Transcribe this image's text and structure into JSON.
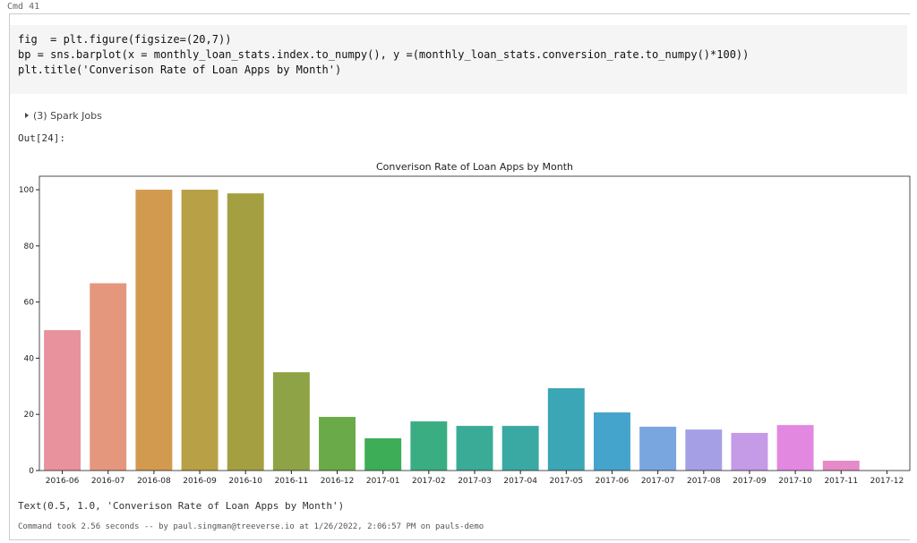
{
  "cell_label": "Cmd 41",
  "code_lines": [
    "fig  = plt.figure(figsize=(20,7))",
    "bp = sns.barplot(x = monthly_loan_stats.index.to_numpy(), y =(monthly_loan_stats.conversion_rate.to_numpy()*100))",
    "plt.title('Converison Rate of Loan Apps by Month')"
  ],
  "spark_jobs": "(3) Spark Jobs",
  "out_label": "Out[24]:",
  "chart_data": {
    "type": "bar",
    "title": "Converison Rate of Loan Apps by Month",
    "categories": [
      "2016-06",
      "2016-07",
      "2016-08",
      "2016-09",
      "2016-10",
      "2016-11",
      "2016-12",
      "2017-01",
      "2017-02",
      "2017-03",
      "2017-04",
      "2017-05",
      "2017-06",
      "2017-07",
      "2017-08",
      "2017-09",
      "2017-10",
      "2017-11",
      "2017-12"
    ],
    "values": [
      50,
      66.7,
      100,
      100,
      98.7,
      35,
      19.1,
      11.5,
      17.5,
      15.9,
      15.9,
      29.3,
      20.7,
      15.6,
      14.6,
      13.4,
      16.2,
      3.5,
      0
    ],
    "colors": [
      "#e8929e",
      "#e5977e",
      "#d29a4e",
      "#b8a046",
      "#a4a042",
      "#8ea345",
      "#6aaa48",
      "#3dad58",
      "#3aad83",
      "#3aab96",
      "#3aa9a4",
      "#3ba6b5",
      "#45a4cc",
      "#7aa6e0",
      "#a5a0e6",
      "#c59ae6",
      "#e388e0",
      "#e68bc8",
      "#e890ab"
    ],
    "ylim": [
      0,
      104.8
    ],
    "yticks": [
      0,
      20,
      40,
      60,
      80,
      100
    ]
  },
  "text_output": "Text(0.5, 1.0, 'Converison Rate of Loan Apps by Month')",
  "command_info": "Command took 2.56 seconds -- by paul.singman@treeverse.io at 1/26/2022, 2:06:57 PM on pauls-demo"
}
